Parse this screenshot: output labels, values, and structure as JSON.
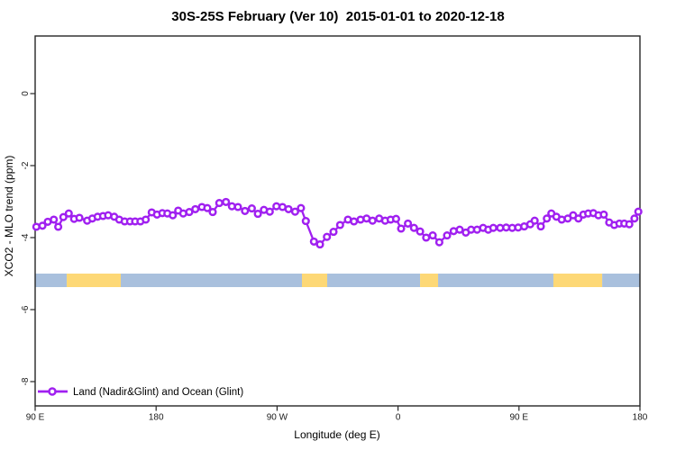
{
  "title": "30S-25S February (Ver 10)  2015-01-01 to 2020-12-18",
  "chart_data": {
    "type": "line",
    "title": "30S-25S February (Ver 10)  2015-01-01 to 2020-12-18",
    "xlabel": "Longitude (deg E)",
    "ylabel": "XCO2 - MLO trend (ppm)",
    "x_unit": "deg E, continuous eastward from 90E wrapping through 180, 90W, 0, 90E to 180",
    "xlim": [
      90,
      540
    ],
    "ylim": [
      -8.68,
      1.6
    ],
    "grid": false,
    "x_ticks": [
      {
        "lon": 90,
        "label": "90 E"
      },
      {
        "lon": 180,
        "label": "180"
      },
      {
        "lon": 270,
        "label": "90 W"
      },
      {
        "lon": 360,
        "label": "0"
      },
      {
        "lon": 450,
        "label": "90 E"
      },
      {
        "lon": 540,
        "label": "180"
      }
    ],
    "y_ticks": [
      {
        "value": 0,
        "label": "0"
      },
      {
        "value": -2,
        "label": "-2"
      },
      {
        "value": -4,
        "label": "-4"
      },
      {
        "value": -6,
        "label": "-6"
      },
      {
        "value": -8,
        "label": "-8"
      }
    ],
    "legend": {
      "position": "bottom-left",
      "entries": [
        {
          "label": "Land (Nadir&Glint) and Ocean (Glint)",
          "marker": "open-circle",
          "color": "#A020F0"
        }
      ]
    },
    "colors": {
      "line": "#A020F0",
      "marker_fill": "#ffffff",
      "ocean_band": "#A9C0DD",
      "land_band": "#FDD876",
      "axis": "#262626"
    },
    "surface_band": {
      "y_top_value": -5.0,
      "y_bottom_value": -5.375,
      "segments": [
        {
          "from": 90.0,
          "to": 113.5,
          "surface": "ocean"
        },
        {
          "from": 113.5,
          "to": 153.7,
          "surface": "land"
        },
        {
          "from": 153.7,
          "to": 288.5,
          "surface": "ocean"
        },
        {
          "from": 288.5,
          "to": 307.3,
          "surface": "land"
        },
        {
          "from": 307.3,
          "to": 376.4,
          "surface": "ocean"
        },
        {
          "from": 376.4,
          "to": 389.8,
          "surface": "land"
        },
        {
          "from": 389.8,
          "to": 475.6,
          "surface": "ocean"
        },
        {
          "from": 475.6,
          "to": 511.9,
          "surface": "land"
        },
        {
          "from": 511.9,
          "to": 540.0,
          "surface": "ocean"
        }
      ]
    },
    "series": [
      {
        "name": "Land (Nadir&Glint) and Ocean (Glint)",
        "color": "#A020F0",
        "point_format": [
          "longitude_deg_e_unwrapped",
          "xco2_minus_mlo_trend_ppm"
        ],
        "points": [
          [
            90.9,
            -3.7
          ],
          [
            95.4,
            -3.67
          ],
          [
            99.4,
            -3.56
          ],
          [
            103.9,
            -3.5
          ],
          [
            107.2,
            -3.7
          ],
          [
            111.0,
            -3.43
          ],
          [
            115.0,
            -3.33
          ],
          [
            119.0,
            -3.48
          ],
          [
            122.9,
            -3.45
          ],
          [
            128.7,
            -3.53
          ],
          [
            132.5,
            -3.47
          ],
          [
            136.5,
            -3.42
          ],
          [
            140.5,
            -3.4
          ],
          [
            144.3,
            -3.38
          ],
          [
            148.8,
            -3.42
          ],
          [
            152.6,
            -3.5
          ],
          [
            156.6,
            -3.55
          ],
          [
            160.6,
            -3.55
          ],
          [
            164.4,
            -3.55
          ],
          [
            168.3,
            -3.55
          ],
          [
            172.3,
            -3.5
          ],
          [
            176.7,
            -3.3
          ],
          [
            180.7,
            -3.36
          ],
          [
            184.6,
            -3.32
          ],
          [
            188.4,
            -3.33
          ],
          [
            192.4,
            -3.38
          ],
          [
            196.4,
            -3.25
          ],
          [
            200.2,
            -3.33
          ],
          [
            204.7,
            -3.29
          ],
          [
            209.2,
            -3.21
          ],
          [
            214.1,
            -3.15
          ],
          [
            218.1,
            -3.18
          ],
          [
            222.1,
            -3.29
          ],
          [
            227.0,
            -3.04
          ],
          [
            232.0,
            -3.01
          ],
          [
            236.4,
            -3.13
          ],
          [
            240.9,
            -3.15
          ],
          [
            246.1,
            -3.26
          ],
          [
            251.2,
            -3.19
          ],
          [
            255.7,
            -3.34
          ],
          [
            260.2,
            -3.23
          ],
          [
            264.6,
            -3.28
          ],
          [
            269.5,
            -3.13
          ],
          [
            274.0,
            -3.15
          ],
          [
            278.5,
            -3.21
          ],
          [
            283.4,
            -3.28
          ],
          [
            287.8,
            -3.18
          ],
          [
            291.4,
            -3.54
          ],
          [
            297.4,
            -4.11
          ],
          [
            301.9,
            -4.19
          ],
          [
            307.1,
            -3.98
          ],
          [
            312.0,
            -3.84
          ],
          [
            316.9,
            -3.65
          ],
          [
            322.7,
            -3.5
          ],
          [
            327.2,
            -3.55
          ],
          [
            332.1,
            -3.5
          ],
          [
            336.6,
            -3.47
          ],
          [
            341.0,
            -3.53
          ],
          [
            346.0,
            -3.47
          ],
          [
            350.4,
            -3.53
          ],
          [
            354.5,
            -3.5
          ],
          [
            358.5,
            -3.48
          ],
          [
            362.3,
            -3.75
          ],
          [
            367.4,
            -3.61
          ],
          [
            371.9,
            -3.73
          ],
          [
            376.4,
            -3.83
          ],
          [
            380.9,
            -4.0
          ],
          [
            385.8,
            -3.94
          ],
          [
            390.7,
            -4.13
          ],
          [
            396.5,
            -3.94
          ],
          [
            401.4,
            -3.82
          ],
          [
            405.9,
            -3.78
          ],
          [
            410.4,
            -3.86
          ],
          [
            414.4,
            -3.78
          ],
          [
            418.8,
            -3.78
          ],
          [
            423.3,
            -3.73
          ],
          [
            427.1,
            -3.78
          ],
          [
            430.9,
            -3.73
          ],
          [
            436.0,
            -3.73
          ],
          [
            440.5,
            -3.72
          ],
          [
            445.0,
            -3.73
          ],
          [
            449.4,
            -3.72
          ],
          [
            453.9,
            -3.69
          ],
          [
            458.4,
            -3.63
          ],
          [
            461.7,
            -3.53
          ],
          [
            466.2,
            -3.69
          ],
          [
            470.7,
            -3.47
          ],
          [
            474.1,
            -3.33
          ],
          [
            477.8,
            -3.42
          ],
          [
            481.8,
            -3.5
          ],
          [
            486.3,
            -3.47
          ],
          [
            490.3,
            -3.38
          ],
          [
            494.2,
            -3.47
          ],
          [
            497.9,
            -3.36
          ],
          [
            501.5,
            -3.33
          ],
          [
            505.3,
            -3.32
          ],
          [
            509.1,
            -3.38
          ],
          [
            513.1,
            -3.36
          ],
          [
            517.1,
            -3.58
          ],
          [
            520.9,
            -3.65
          ],
          [
            524.7,
            -3.61
          ],
          [
            528.3,
            -3.61
          ],
          [
            532.1,
            -3.63
          ],
          [
            535.9,
            -3.47
          ],
          [
            538.8,
            -3.28
          ]
        ]
      }
    ]
  }
}
